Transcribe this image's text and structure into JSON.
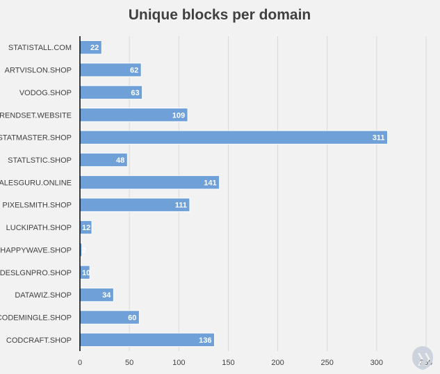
{
  "chart_data": {
    "type": "bar",
    "orientation": "horizontal",
    "title": "Unique blocks per domain",
    "xlabel": "",
    "ylabel": "",
    "categories": [
      "STATISTALL.COM",
      "ARTVISLON.SHOP",
      "VODOG.SHOP",
      "TRENDSET.WEBSITE",
      "STATMASTER.SHOP",
      "STATLSTIC.SHOP",
      "SALESGURU.ONLINE",
      "PIXELSMITH.SHOP",
      "LUCKIPATH.SHOP",
      "HAPPYWAVE.SHOP",
      "DESLGNPRO.SHOP",
      "DATAWIZ.SHOP",
      "CODEMINGLE.SHOP",
      "CODCRAFT.SHOP"
    ],
    "values": [
      22,
      62,
      63,
      109,
      311,
      48,
      141,
      111,
      12,
      2,
      10,
      34,
      60,
      136
    ],
    "xlim": [
      0,
      350
    ],
    "ticks": [
      0,
      50,
      100,
      150,
      200,
      250,
      300,
      350
    ],
    "grid": "vertical",
    "legend": "none",
    "data_labels": "inside-end",
    "colors": {
      "bar": "#6fa0d8",
      "bar_border": "#ffffff",
      "grid": "#d9d9d9",
      "axis": "#000000",
      "background": "#f2f2f2",
      "text": "#404040",
      "data_label": "#ffffff"
    }
  },
  "watermark": {
    "icon": "malwarebytes-logo-icon",
    "color": "#ccd3dc"
  }
}
